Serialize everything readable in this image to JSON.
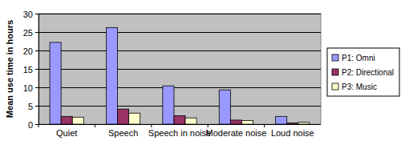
{
  "chart_data": {
    "type": "bar",
    "y_label": "Mean use time in hours",
    "categories": [
      "Quiet",
      "Speech",
      "Speech in noise",
      "Moderate noise",
      "Loud noise"
    ],
    "series": [
      {
        "name": "P1: Omni",
        "color": "#9999ff",
        "values": [
          22.2,
          26.2,
          10.4,
          9.3,
          2.1
        ]
      },
      {
        "name": "P2: Directional",
        "color": "#993366",
        "values": [
          2.1,
          4.1,
          2.3,
          1.1,
          0.3
        ]
      },
      {
        "name": "P3: Music",
        "color": "#ffffcc",
        "values": [
          1.9,
          3.0,
          1.7,
          1.0,
          0.5
        ]
      }
    ],
    "ylim": [
      0,
      30
    ],
    "yticks": [
      0,
      5,
      10,
      15,
      20,
      25,
      30
    ],
    "grid": true,
    "legend": "right"
  }
}
